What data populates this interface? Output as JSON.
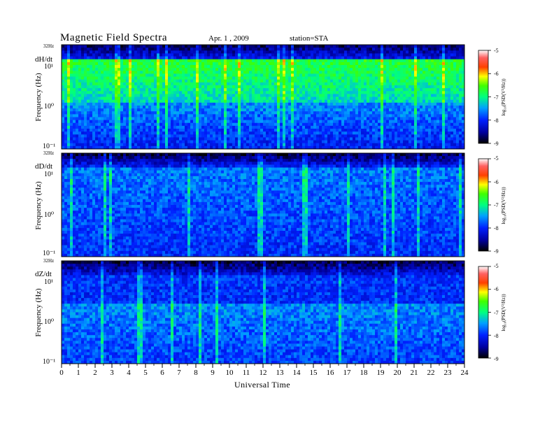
{
  "header": {
    "title": "Magnetic  Field  Spectra",
    "date": "Apr. 1  , 2009",
    "station": "station=STA"
  },
  "chart_data": [
    {
      "type": "heatmap",
      "component": "dH/dt",
      "ylabel": "Frequency  (Hz)",
      "top_label": "32Hz",
      "yticks": [
        "10¹",
        "10⁰",
        "10⁻¹"
      ],
      "colorbar": {
        "label": "log₁₀(PSD(V²/Hz))",
        "ticks": [
          "-5",
          "-6",
          "-7",
          "-8",
          "-9"
        ],
        "range": [
          -9,
          -5
        ]
      }
    },
    {
      "type": "heatmap",
      "component": "dD/dt",
      "ylabel": "Frequency  (Hz)",
      "top_label": "32Hz",
      "yticks": [
        "10¹",
        "10⁰",
        "10⁻¹"
      ],
      "colorbar": {
        "label": "log₁₀(PSD(V²/Hz))",
        "ticks": [
          "-5",
          "-6",
          "-7",
          "-8",
          "-9"
        ],
        "range": [
          -9,
          -5
        ]
      }
    },
    {
      "type": "heatmap",
      "component": "dZ/dt",
      "ylabel": "Frequency  (Hz)",
      "top_label": "32Hz",
      "yticks": [
        "10¹",
        "10⁰",
        "10⁻¹"
      ],
      "colorbar": {
        "label": "log₁₀(PSD(V²/Hz))",
        "ticks": [
          "-5",
          "-6",
          "-7",
          "-8",
          "-9"
        ],
        "range": [
          -9,
          -5
        ]
      }
    }
  ],
  "xaxis": {
    "label": "Universal Time",
    "ticks": [
      "0",
      "1",
      "2",
      "3",
      "4",
      "5",
      "6",
      "7",
      "8",
      "9",
      "10",
      "11",
      "12",
      "13",
      "14",
      "15",
      "16",
      "17",
      "18",
      "19",
      "20",
      "21",
      "22",
      "23",
      "24"
    ],
    "range": [
      0,
      24
    ]
  }
}
